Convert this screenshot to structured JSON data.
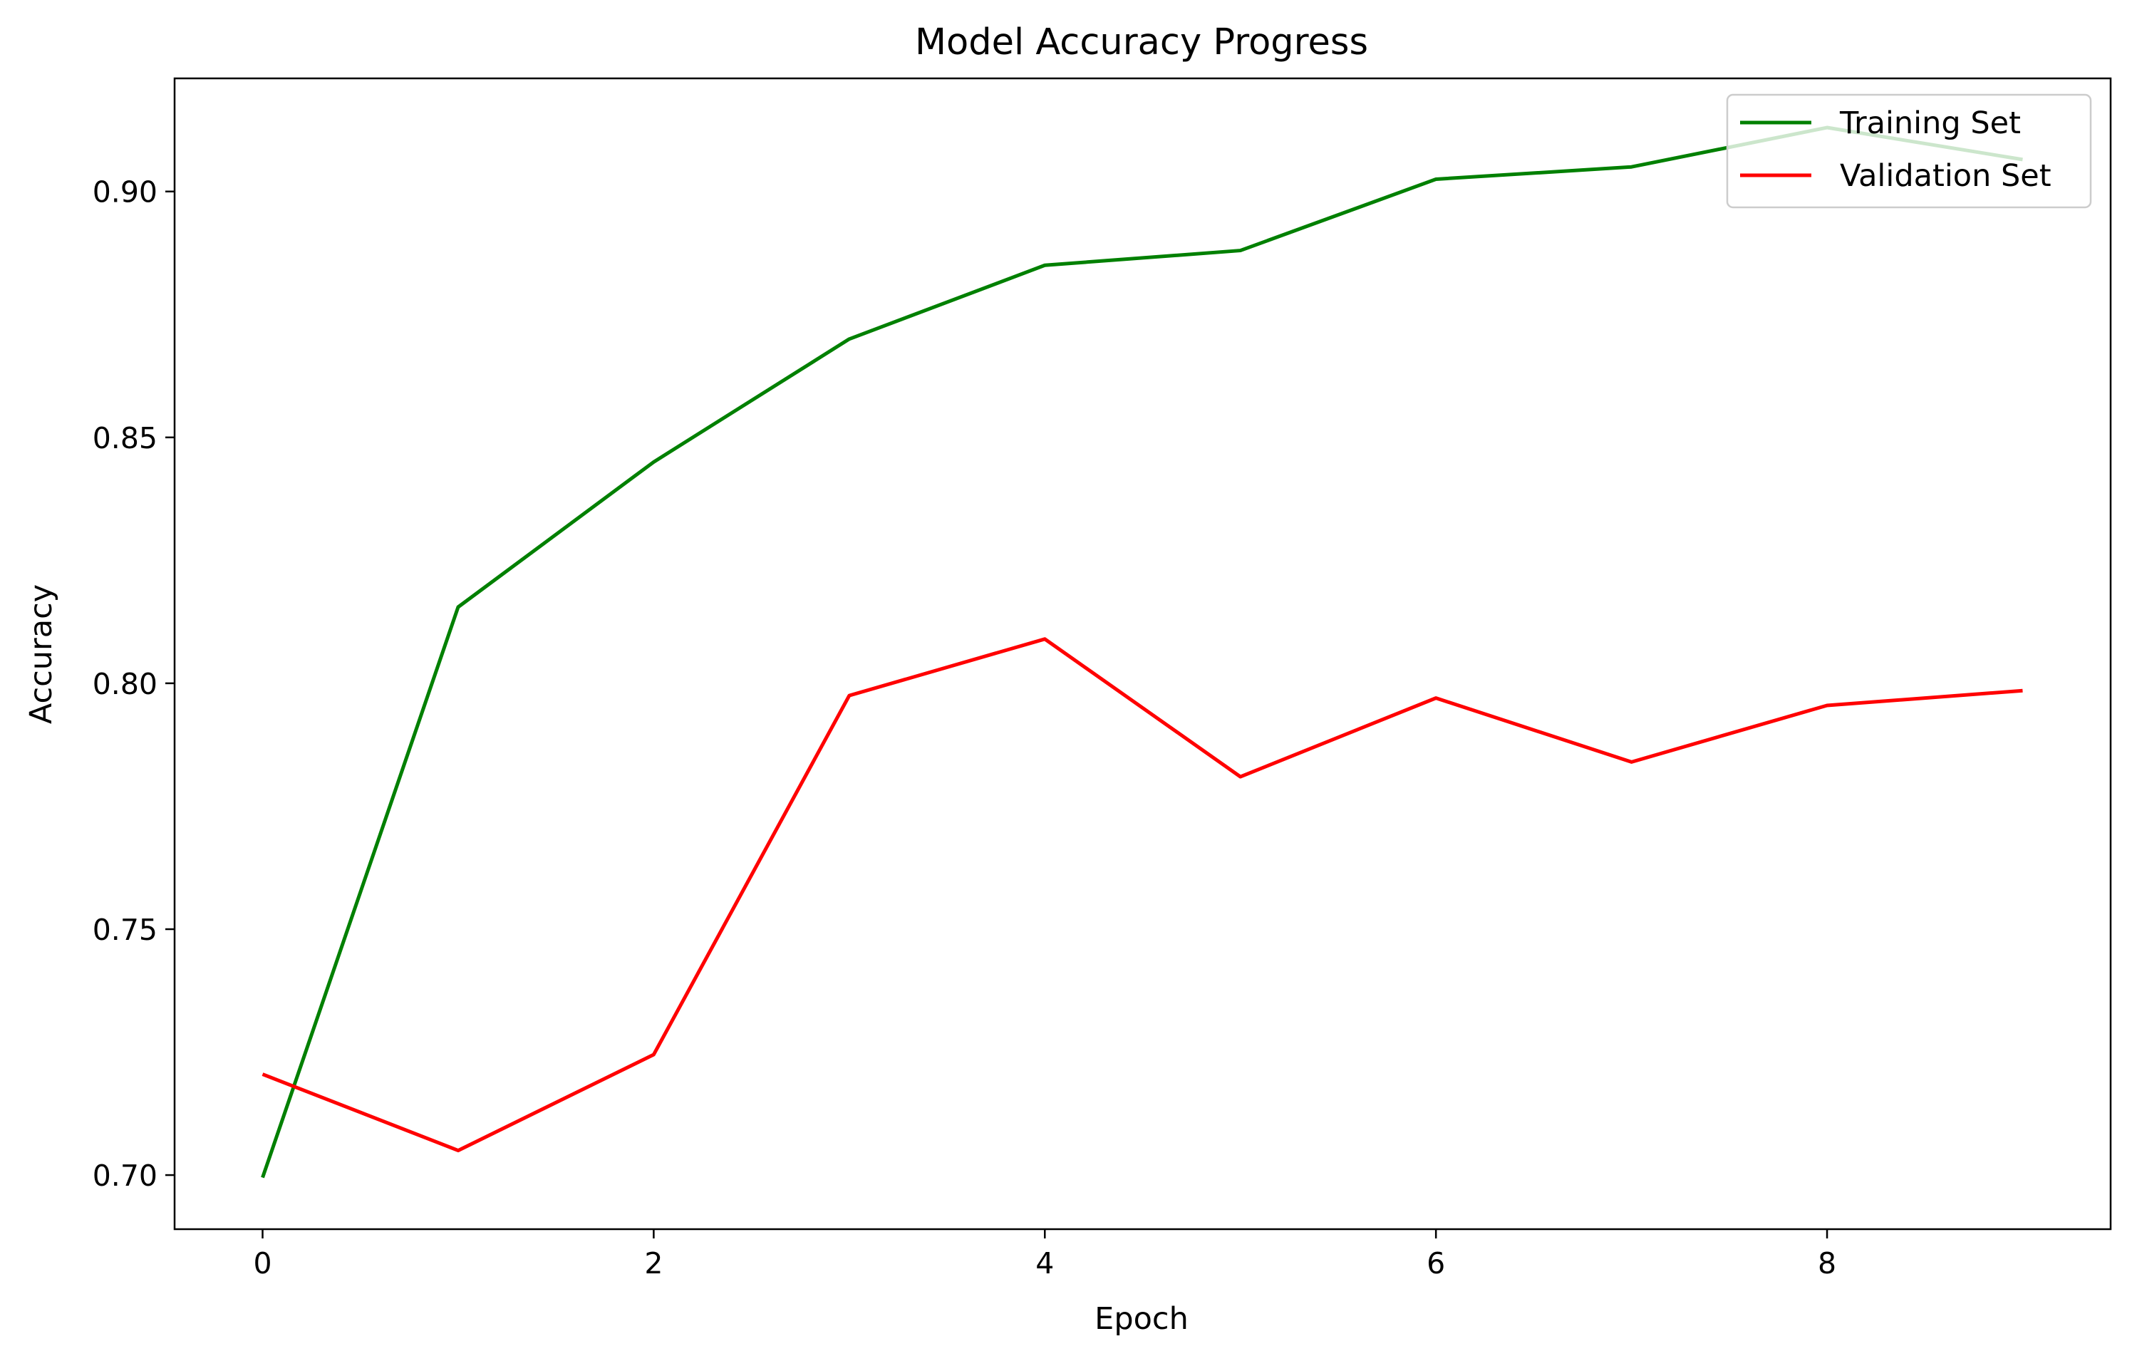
{
  "chart_data": {
    "type": "line",
    "title": "Model Accuracy Progress",
    "xlabel": "Epoch",
    "ylabel": "Accuracy",
    "x": [
      0,
      1,
      2,
      3,
      4,
      5,
      6,
      7,
      8,
      9
    ],
    "xlim": [
      -0.45,
      9.45
    ],
    "ylim": [
      0.689,
      0.923
    ],
    "xticks": [
      0,
      2,
      4,
      6,
      8
    ],
    "xtick_labels": [
      "0",
      "2",
      "4",
      "6",
      "8"
    ],
    "yticks": [
      0.7,
      0.75,
      0.8,
      0.85,
      0.9
    ],
    "ytick_labels": [
      "0.70",
      "0.75",
      "0.80",
      "0.85",
      "0.90"
    ],
    "grid": false,
    "legend": "top-right",
    "series": [
      {
        "name": "Training Set",
        "color": "#008000",
        "values": [
          0.6995,
          0.8155,
          0.845,
          0.87,
          0.885,
          0.888,
          0.9025,
          0.905,
          0.913,
          0.9065
        ]
      },
      {
        "name": "Validation Set",
        "color": "#ff0000",
        "values": [
          0.7205,
          0.705,
          0.7245,
          0.7975,
          0.809,
          0.781,
          0.797,
          0.784,
          0.7955,
          0.7985
        ]
      }
    ]
  }
}
